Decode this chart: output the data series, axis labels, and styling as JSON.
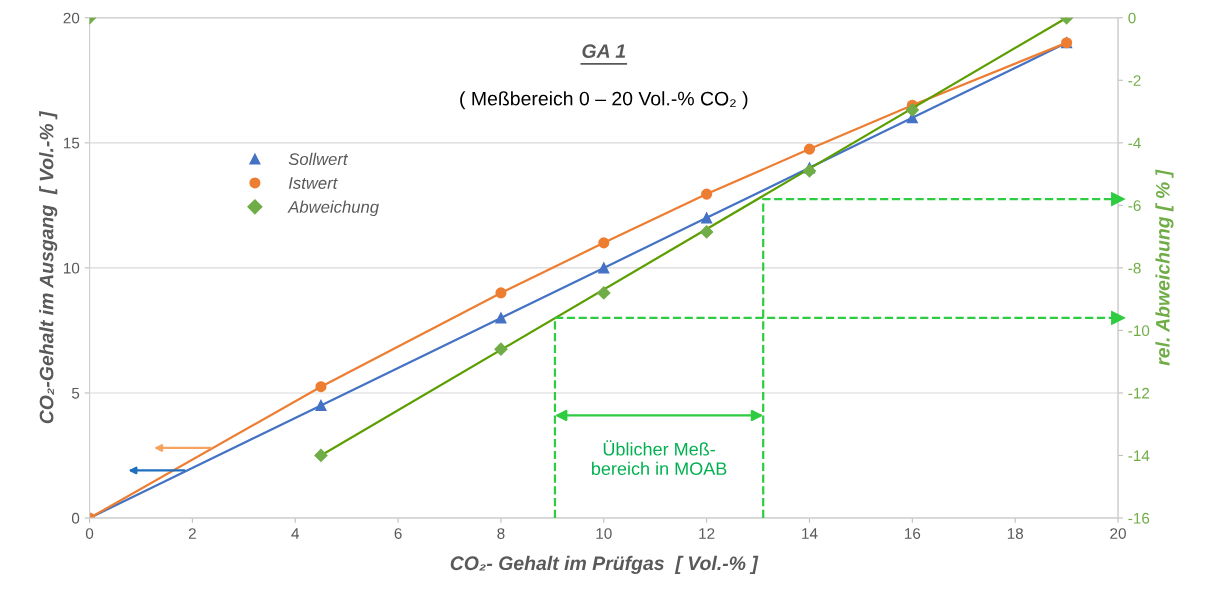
{
  "chart_data": {
    "type": "line",
    "title": "GA 1",
    "subtitle": "( Meßbereich 0 – 20 Vol.-% CO₂ )",
    "xlabel": "CO₂- Gehalt im Prüfgas  [ Vol.-% ]",
    "ylabel": "CO₂-Gehalt im Ausgang  [ Vol.-% ]",
    "y2label": "rel. Abweichung [ % ]",
    "x": [
      0,
      4.5,
      8,
      10,
      12,
      14,
      16,
      19
    ],
    "series": [
      {
        "name": "Sollwert",
        "color": "#4472c4",
        "marker": "triangle",
        "values": [
          0,
          4.5,
          8,
          10,
          12,
          14,
          16,
          19
        ]
      },
      {
        "name": "Istwert",
        "color": "#ed7d31",
        "marker": "circle",
        "values": [
          0,
          5.25,
          9.0,
          11.0,
          12.95,
          14.75,
          16.5,
          19.0
        ]
      },
      {
        "name": "Abweichung",
        "type": "scatter",
        "axis": "y2",
        "color": "#70ad47",
        "marker": "diamond",
        "values": [
          0,
          -14.0,
          -10.6,
          -8.8,
          -6.85,
          -4.9,
          -2.95,
          0
        ]
      },
      {
        "type": "line",
        "axis": "y2",
        "color": "#5b9e00",
        "marker": "none",
        "x": [
          4.5,
          19
        ],
        "values": [
          -14.0,
          0
        ]
      },
      {
        "type": "line",
        "axis": "y2",
        "color": "#2ecc40",
        "marker": "none",
        "line_style": "dashed",
        "x": [
          9.05,
          9.05,
          20
        ],
        "values": [
          -16,
          -9.6,
          -9.6
        ]
      },
      {
        "type": "line",
        "axis": "y2",
        "color": "#2ecc40",
        "marker": "none",
        "line_style": "dashed",
        "x": [
          13.1,
          13.1,
          20
        ],
        "values": [
          -16,
          -5.8,
          -5.8
        ]
      }
    ],
    "xlim": [
      0,
      20
    ],
    "xticks": [
      0,
      2,
      4,
      6,
      8,
      10,
      12,
      14,
      16,
      18,
      20
    ],
    "ylim": [
      0,
      20
    ],
    "yticks": [
      0,
      5,
      10,
      15,
      20
    ],
    "y2lim": [
      -16,
      0
    ],
    "y2ticks": [
      -16,
      -14,
      -12,
      -10,
      -8,
      -6,
      -4,
      -2,
      0
    ],
    "annotations": [
      "Üblicher Meß-\nbereich in MOAB"
    ],
    "grid": "y",
    "legend": "top left"
  }
}
